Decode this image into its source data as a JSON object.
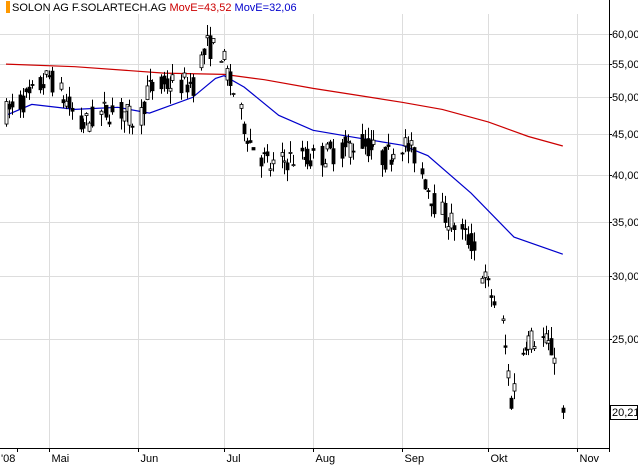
{
  "legend": {
    "ticker": "SOLON AG F.SOLARTECH.AG",
    "ma1_label": "MovE=43,52",
    "ma2_label": "MovE=32,06"
  },
  "last_price_label": "20,21",
  "colors": {
    "ma1": "#cc0000",
    "ma2": "#0000cc",
    "candle": "#000000",
    "grid": "#dddddd",
    "legend_marker": "#ff9900"
  },
  "chart_data": {
    "type": "candlestick",
    "title": "SOLON AG F.SOLARTECH.AG",
    "y_scale": "log",
    "ylim": [
      18.3,
      63.5
    ],
    "y_ticks": [
      {
        "value": 60,
        "label": "60,00"
      },
      {
        "value": 55,
        "label": "55,00"
      },
      {
        "value": 50,
        "label": "50,00"
      },
      {
        "value": 45,
        "label": "45,00"
      },
      {
        "value": 40,
        "label": "40,00"
      },
      {
        "value": 35,
        "label": "35,00"
      },
      {
        "value": 30,
        "label": "30,00"
      },
      {
        "value": 25,
        "label": "25,00"
      }
    ],
    "x_ticks": [
      {
        "date": "2008-04-20",
        "label": "'08"
      },
      {
        "date": "2008-05-01",
        "label": "Mai"
      },
      {
        "date": "2008-06-01",
        "label": "Jun"
      },
      {
        "date": "2008-07-01",
        "label": "Jul"
      },
      {
        "date": "2008-08-01",
        "label": "Aug"
      },
      {
        "date": "2008-09-01",
        "label": "Sep"
      },
      {
        "date": "2008-10-01",
        "label": "Okt"
      },
      {
        "date": "2008-11-01",
        "label": "Nov"
      }
    ],
    "x_range": [
      "2008-04-16",
      "2008-11-10"
    ],
    "grid": true,
    "series": [
      {
        "name": "MovE=43,52",
        "type": "line",
        "color": "#cc0000",
        "points": [
          [
            "2008-04-16",
            55.0
          ],
          [
            "2008-05-10",
            54.6
          ],
          [
            "2008-06-10",
            53.6
          ],
          [
            "2008-07-01",
            53.4
          ],
          [
            "2008-07-15",
            52.6
          ],
          [
            "2008-08-01",
            51.3
          ],
          [
            "2008-08-15",
            50.4
          ],
          [
            "2008-09-01",
            49.3
          ],
          [
            "2008-09-15",
            48.3
          ],
          [
            "2008-10-01",
            46.6
          ],
          [
            "2008-10-15",
            44.7
          ],
          [
            "2008-10-27",
            43.5
          ]
        ]
      },
      {
        "name": "MovE=32,06",
        "type": "line",
        "color": "#0000cc",
        "points": [
          [
            "2008-04-16",
            47.5
          ],
          [
            "2008-04-25",
            49.0
          ],
          [
            "2008-05-10",
            48.3
          ],
          [
            "2008-05-25",
            48.6
          ],
          [
            "2008-06-05",
            47.8
          ],
          [
            "2008-06-20",
            50.0
          ],
          [
            "2008-06-28",
            52.8
          ],
          [
            "2008-07-01",
            53.2
          ],
          [
            "2008-07-08",
            51.5
          ],
          [
            "2008-07-20",
            47.5
          ],
          [
            "2008-08-01",
            45.5
          ],
          [
            "2008-08-15",
            44.6
          ],
          [
            "2008-09-01",
            43.6
          ],
          [
            "2008-09-10",
            42.3
          ],
          [
            "2008-09-25",
            38.0
          ],
          [
            "2008-10-10",
            33.5
          ],
          [
            "2008-10-27",
            31.9
          ]
        ]
      }
    ],
    "last_close": 20.21
  }
}
